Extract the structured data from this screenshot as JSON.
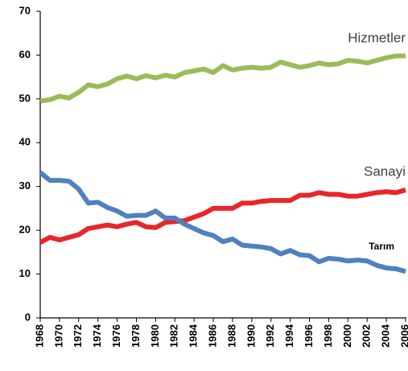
{
  "chart_data": {
    "type": "line",
    "x": [
      1968,
      1969,
      1970,
      1971,
      1972,
      1973,
      1974,
      1975,
      1976,
      1977,
      1978,
      1979,
      1980,
      1981,
      1982,
      1983,
      1984,
      1985,
      1986,
      1987,
      1988,
      1989,
      1990,
      1991,
      1992,
      1993,
      1994,
      1995,
      1996,
      1997,
      1998,
      1999,
      2000,
      2001,
      2002,
      2003,
      2004,
      2005,
      2006
    ],
    "xlim": [
      1968,
      2006
    ],
    "xticks": [
      1968,
      1970,
      1972,
      1974,
      1976,
      1978,
      1980,
      1982,
      1984,
      1986,
      1988,
      1990,
      1992,
      1994,
      1996,
      1998,
      2000,
      2002,
      2004,
      2006
    ],
    "ylim": [
      0,
      70
    ],
    "yticks": [
      0,
      10,
      20,
      30,
      40,
      50,
      60,
      70
    ],
    "grid": false,
    "series": [
      {
        "name": "Hizmetler",
        "color": "#9bbb59",
        "values": [
          49.5,
          49.8,
          50.6,
          50.2,
          51.5,
          53.2,
          52.8,
          53.4,
          54.6,
          55.2,
          54.6,
          55.3,
          54.8,
          55.4,
          55.0,
          56.0,
          56.4,
          56.8,
          56.0,
          57.6,
          56.6,
          57.0,
          57.2,
          57.0,
          57.2,
          58.4,
          57.8,
          57.2,
          57.6,
          58.2,
          57.8,
          58.0,
          58.8,
          58.6,
          58.2,
          58.8,
          59.4,
          59.8,
          59.8
        ]
      },
      {
        "name": "Sanayi",
        "color": "#e8262a",
        "values": [
          17.2,
          18.4,
          17.8,
          18.4,
          19.0,
          20.4,
          20.8,
          21.2,
          20.8,
          21.4,
          21.8,
          20.8,
          20.6,
          21.8,
          22.0,
          22.2,
          23.0,
          23.8,
          25.0,
          25.0,
          25.0,
          26.2,
          26.2,
          26.6,
          26.8,
          26.8,
          26.8,
          28.0,
          28.0,
          28.6,
          28.2,
          28.2,
          27.8,
          27.8,
          28.2,
          28.6,
          28.8,
          28.6,
          29.2
        ]
      },
      {
        "name": "Tarım",
        "color": "#4f81bd",
        "values": [
          33.2,
          31.4,
          31.4,
          31.2,
          29.4,
          26.2,
          26.4,
          25.2,
          24.4,
          23.2,
          23.4,
          23.4,
          24.4,
          22.8,
          22.8,
          21.4,
          20.4,
          19.4,
          18.8,
          17.4,
          18.0,
          16.6,
          16.4,
          16.2,
          15.8,
          14.6,
          15.4,
          14.4,
          14.2,
          12.8,
          13.6,
          13.4,
          13.0,
          13.2,
          13.0,
          12.0,
          11.4,
          11.2,
          10.6
        ]
      }
    ]
  }
}
